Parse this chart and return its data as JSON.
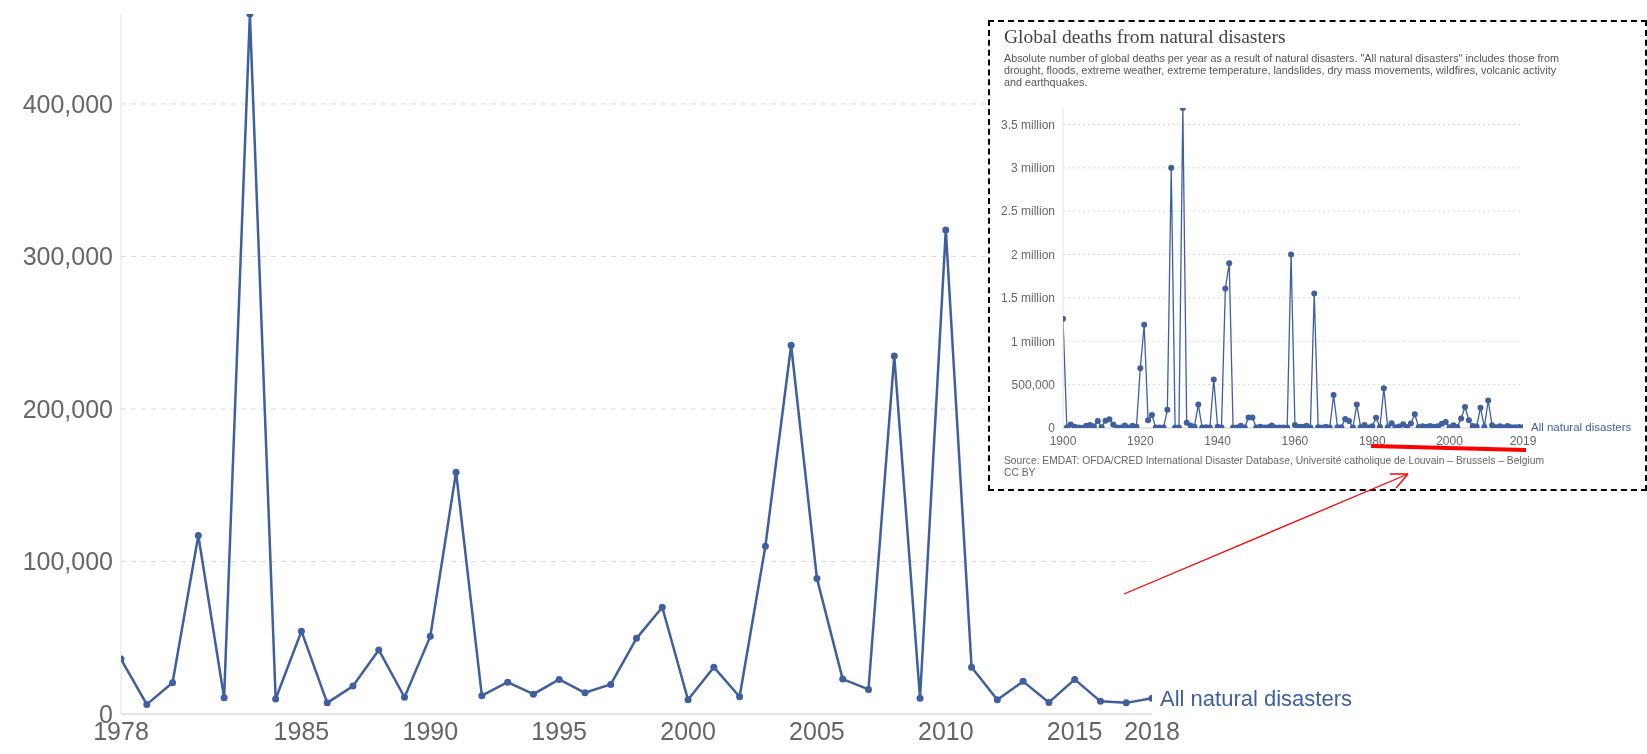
{
  "chart_data": [
    {
      "type": "line",
      "x": [
        1978,
        1979,
        1980,
        1981,
        1982,
        1983,
        1984,
        1985,
        1986,
        1987,
        1988,
        1989,
        1990,
        1991,
        1992,
        1993,
        1994,
        1995,
        1996,
        1997,
        1998,
        1999,
        2000,
        2001,
        2002,
        2003,
        2004,
        2005,
        2006,
        2007,
        2008,
        2009,
        2010,
        2011,
        2012,
        2013,
        2014,
        2015,
        2016,
        2017,
        2018
      ],
      "series": [
        {
          "name": "All natural disasters",
          "color": "#3f5f9f",
          "values": [
            36000,
            6300,
            20500,
            117000,
            10700,
            459000,
            9800,
            54300,
            7300,
            18300,
            42000,
            11000,
            50900,
            158600,
            12000,
            20900,
            13000,
            22700,
            13900,
            19400,
            49600,
            70000,
            9300,
            30700,
            11300,
            110000,
            241800,
            88900,
            22900,
            16100,
            234800,
            10300,
            317400,
            30700,
            9300,
            21400,
            7600,
            22700,
            8300,
            7300,
            10300
          ]
        }
      ],
      "xlim": [
        1978,
        2018
      ],
      "xticks": [
        1978,
        1985,
        1990,
        1995,
        2000,
        2005,
        2010,
        2015,
        2018
      ],
      "ylim": [
        0,
        459000
      ],
      "yticks": [
        {
          "value": 0,
          "label": "0"
        },
        {
          "value": 100000,
          "label": "100,000"
        },
        {
          "value": 200000,
          "label": "200,000"
        },
        {
          "value": 300000,
          "label": "300,000"
        },
        {
          "value": 400000,
          "label": "400,000"
        }
      ],
      "grid": "y",
      "marker": "circle"
    },
    {
      "type": "line",
      "title": "Global deaths from natural disasters",
      "subtitle": "Absolute number of global deaths per year as a result of natural disasters. \"All natural disasters\" includes those from drought, floods, extreme weather, extreme temperature, landslides, dry mass movements, wildfires, volcanic activity and earthquakes.",
      "x": [
        1900,
        1901,
        1902,
        1903,
        1904,
        1905,
        1906,
        1907,
        1908,
        1909,
        1910,
        1911,
        1912,
        1913,
        1914,
        1915,
        1916,
        1917,
        1918,
        1919,
        1920,
        1921,
        1922,
        1923,
        1924,
        1925,
        1926,
        1927,
        1928,
        1929,
        1930,
        1931,
        1932,
        1933,
        1934,
        1935,
        1936,
        1937,
        1938,
        1939,
        1940,
        1941,
        1942,
        1943,
        1944,
        1945,
        1946,
        1947,
        1948,
        1949,
        1950,
        1951,
        1952,
        1953,
        1954,
        1955,
        1956,
        1957,
        1958,
        1959,
        1960,
        1961,
        1962,
        1963,
        1964,
        1965,
        1966,
        1967,
        1968,
        1969,
        1970,
        1971,
        1972,
        1973,
        1974,
        1975,
        1976,
        1977,
        1978,
        1979,
        1980,
        1981,
        1982,
        1983,
        1984,
        1985,
        1986,
        1987,
        1988,
        1989,
        1990,
        1991,
        1992,
        1993,
        1994,
        1995,
        1996,
        1997,
        1998,
        1999,
        2000,
        2001,
        2002,
        2003,
        2004,
        2005,
        2006,
        2007,
        2008,
        2009,
        2010,
        2011,
        2012,
        2013,
        2014,
        2015,
        2016,
        2017,
        2018,
        2019
      ],
      "series": [
        {
          "name": "All natural disasters",
          "color": "#3f5f9f",
          "values": [
            1260000,
            5000,
            40000,
            15000,
            5000,
            2000,
            25000,
            35000,
            20000,
            80000,
            10000,
            85000,
            100000,
            40000,
            5000,
            5000,
            30000,
            5000,
            25000,
            15000,
            690000,
            1190000,
            90000,
            150000,
            5000,
            5000,
            5000,
            210000,
            3000000,
            5000,
            5000,
            3690000,
            60000,
            30000,
            15000,
            270000,
            5000,
            10000,
            5000,
            560000,
            15000,
            5000,
            1610000,
            1900000,
            5000,
            5000,
            25000,
            5000,
            120000,
            120000,
            5000,
            15000,
            5000,
            10000,
            30000,
            5000,
            5000,
            5000,
            5000,
            2000000,
            35000,
            15000,
            15000,
            25000,
            5000,
            1550000,
            10000,
            5000,
            15000,
            5000,
            380000,
            10000,
            10000,
            105000,
            80000,
            5000,
            270000,
            10000,
            36000,
            6300,
            20500,
            117000,
            10700,
            459000,
            9800,
            54300,
            7300,
            18300,
            42000,
            11000,
            50900,
            158600,
            12000,
            20900,
            13000,
            22700,
            13900,
            19400,
            49600,
            70000,
            9300,
            30700,
            11300,
            110000,
            241800,
            88900,
            22900,
            16100,
            234800,
            10300,
            317400,
            30700,
            9300,
            21400,
            7600,
            22700,
            8300,
            7300,
            10300,
            10000
          ]
        }
      ],
      "xlim": [
        1900,
        2019
      ],
      "xticks": [
        1900,
        1920,
        1940,
        1960,
        1980,
        2000,
        2019
      ],
      "ylim": [
        0,
        3690000
      ],
      "yticks": [
        {
          "value": 0,
          "label": "0"
        },
        {
          "value": 500000,
          "label": "500,000"
        },
        {
          "value": 1000000,
          "label": "1 million"
        },
        {
          "value": 1500000,
          "label": "1.5 million"
        },
        {
          "value": 2000000,
          "label": "2 million"
        },
        {
          "value": 2500000,
          "label": "2.5 million"
        },
        {
          "value": 3000000,
          "label": "3 million"
        },
        {
          "value": 3500000,
          "label": "3.5 million"
        }
      ],
      "grid": "y",
      "marker": "circle",
      "annotations": [
        "Source: EMDAT: OFDA/CRED International Disaster Database, Université catholique de Louvain – Brussels – Belgium",
        "CC BY"
      ]
    }
  ]
}
